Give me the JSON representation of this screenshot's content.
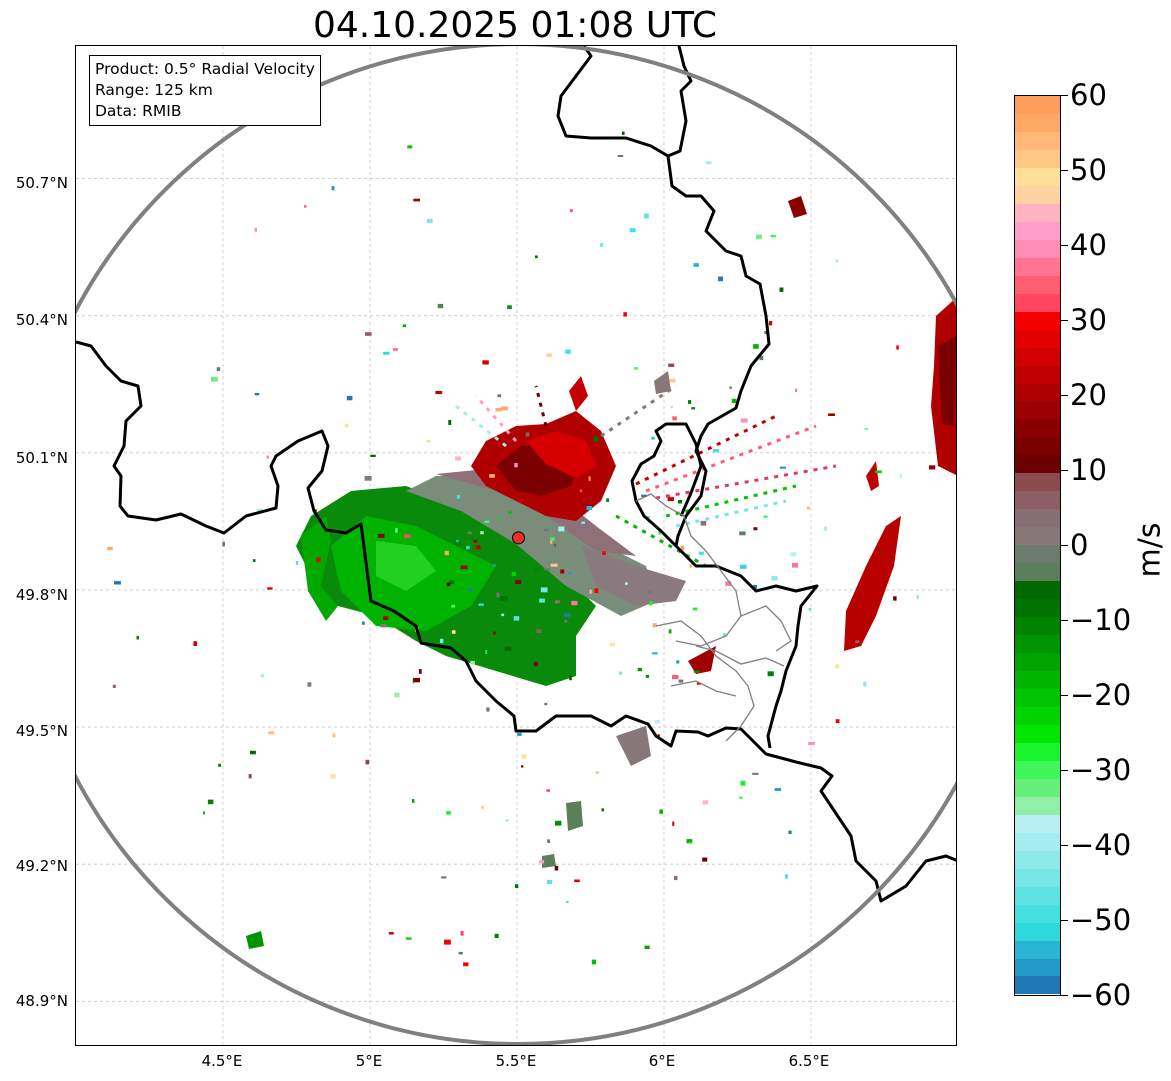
{
  "title": "04.10.2025 01:08 UTC",
  "info": {
    "product": "Product: 0.5° Radial Velocity",
    "range": "Range: 125 km",
    "data": "Data: RMIB"
  },
  "map": {
    "lon_range": [
      4.0,
      7.0
    ],
    "lat_range": [
      48.8,
      50.99
    ],
    "lat_ticks": [
      "50.7°N",
      "50.4°N",
      "50.1°N",
      "49.8°N",
      "49.5°N",
      "49.2°N",
      "48.9°N"
    ],
    "lon_ticks": [
      "4.5°E",
      "5°E",
      "5.5°E",
      "6°E",
      "6.5°E"
    ],
    "gridlines": true,
    "radar_site": {
      "lon": 5.505,
      "lat": 49.914,
      "color": "#e8302b"
    },
    "range_ring_color": "#808080"
  },
  "colorbar": {
    "unit": "m/s",
    "min": -60,
    "max": 60,
    "ticks": [
      "60",
      "50",
      "40",
      "30",
      "20",
      "10",
      "0",
      "−10",
      "−20",
      "−30",
      "−40",
      "−50",
      "−60"
    ],
    "colors": [
      "#1f77b4",
      "#2399c9",
      "#28b6d4",
      "#2ed8dc",
      "#44e0df",
      "#5fe3e2",
      "#76e6e6",
      "#8ee9ea",
      "#a5ecef",
      "#b9eef3",
      "#90f0a8",
      "#66f07a",
      "#3ff65b",
      "#19f32c",
      "#00e600",
      "#00d400",
      "#00c400",
      "#00b400",
      "#00a400",
      "#009400",
      "#008400",
      "#007400",
      "#006a00",
      "#5b7e5b",
      "#6c7c6c",
      "#867878",
      "#8a6e76",
      "#8c5e66",
      "#8a4a50",
      "#6b0000",
      "#7a0000",
      "#8a0000",
      "#9c0000",
      "#ae0000",
      "#c00000",
      "#d20000",
      "#e40000",
      "#f40000",
      "#ff4560",
      "#ff5d72",
      "#ff7591",
      "#ff8db6",
      "#ff9ec8",
      "#ffb3c0",
      "#ffd3a0",
      "#ffe09a",
      "#ffc985",
      "#ffb878",
      "#ffa868",
      "#ff9d5a"
    ]
  }
}
